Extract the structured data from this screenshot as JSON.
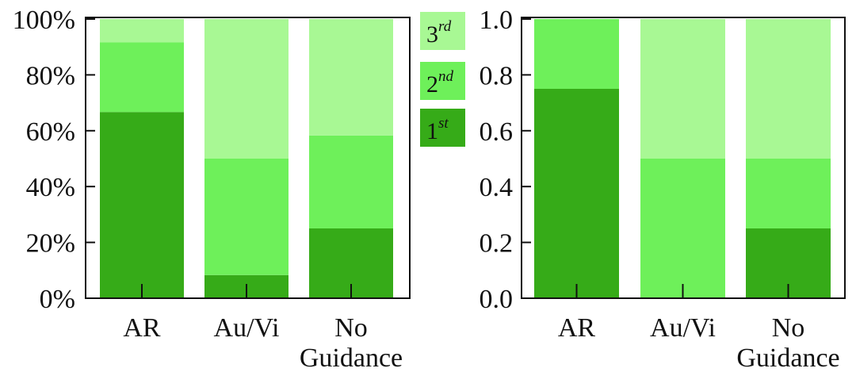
{
  "chart_data": [
    {
      "type": "bar",
      "stacked": true,
      "title": "",
      "xlabel": "",
      "ylabel": "",
      "ylim": [
        0,
        100
      ],
      "yticks": [
        "0%",
        "20%",
        "40%",
        "60%",
        "80%",
        "100%"
      ],
      "ytick_values": [
        0,
        20,
        40,
        60,
        80,
        100
      ],
      "categories": [
        "AR",
        "Au/Vi",
        "No Guidance"
      ],
      "category_lines": [
        [
          "AR"
        ],
        [
          "Au/Vi"
        ],
        [
          "No",
          "Guidance"
        ]
      ],
      "series": [
        {
          "name": "1st",
          "color": "#36ab18",
          "values": [
            66.7,
            8.3,
            25.0
          ]
        },
        {
          "name": "2nd",
          "color": "#6ef05a",
          "values": [
            25.0,
            41.7,
            33.3
          ]
        },
        {
          "name": "3rd",
          "color": "#a8f894",
          "values": [
            8.3,
            50.0,
            41.7
          ]
        }
      ]
    },
    {
      "type": "bar",
      "stacked": true,
      "title": "",
      "xlabel": "",
      "ylabel": "",
      "ylim": [
        0,
        1.0
      ],
      "yticks": [
        "0.0",
        "0.2",
        "0.4",
        "0.6",
        "0.8",
        "1.0"
      ],
      "ytick_values": [
        0,
        0.2,
        0.4,
        0.6,
        0.8,
        1.0
      ],
      "categories": [
        "AR",
        "Au/Vi",
        "No Guidance"
      ],
      "category_lines": [
        [
          "AR"
        ],
        [
          "Au/Vi"
        ],
        [
          "No",
          "Guidance"
        ]
      ],
      "series": [
        {
          "name": "1st",
          "color": "#36ab18",
          "values": [
            0.75,
            0.0,
            0.25
          ]
        },
        {
          "name": "2nd",
          "color": "#6ef05a",
          "values": [
            0.25,
            0.5,
            0.25
          ]
        },
        {
          "name": "3rd",
          "color": "#a8f894",
          "values": [
            0.0,
            0.5,
            0.5
          ]
        }
      ]
    }
  ],
  "legend": {
    "placement": "center",
    "items": [
      {
        "base": "3",
        "sup": "rd",
        "color": "#a8f894"
      },
      {
        "base": "2",
        "sup": "nd",
        "color": "#6ef05a"
      },
      {
        "base": "1",
        "sup": "st",
        "color": "#36ab18"
      }
    ]
  }
}
